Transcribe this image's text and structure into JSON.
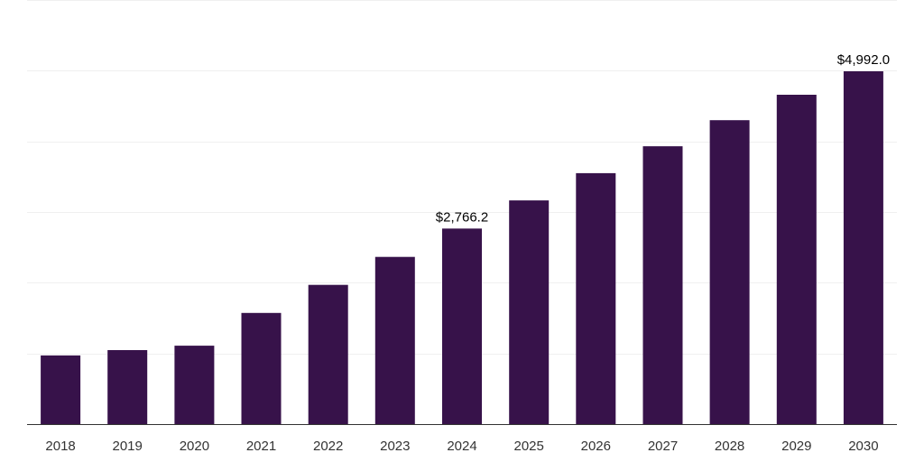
{
  "chart_data": {
    "type": "bar",
    "title": "",
    "xlabel": "",
    "ylabel": "",
    "categories": [
      "2018",
      "2019",
      "2020",
      "2021",
      "2022",
      "2023",
      "2024",
      "2025",
      "2026",
      "2027",
      "2028",
      "2029",
      "2030"
    ],
    "values": [
      972,
      1047,
      1110,
      1573,
      1970,
      2366,
      2766.2,
      3165,
      3550,
      3930,
      4300,
      4660,
      4992.0
    ],
    "data_labels": [
      {
        "category": "2024",
        "text": "$2,766.2"
      },
      {
        "category": "2030",
        "text": "$4,992.0"
      }
    ],
    "ylim": [
      0,
      6000
    ],
    "grid": true,
    "y_tick_labels_shown": false,
    "bar_color": "#37124a"
  }
}
